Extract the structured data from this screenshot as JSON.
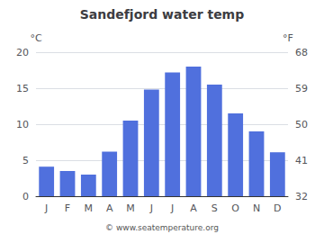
{
  "chart_data": {
    "type": "bar",
    "title": "Sandefjord water temp",
    "categories": [
      "J",
      "F",
      "M",
      "A",
      "M",
      "J",
      "J",
      "A",
      "S",
      "O",
      "N",
      "D"
    ],
    "values": [
      4.1,
      3.5,
      3.0,
      6.2,
      10.5,
      14.8,
      17.2,
      18.0,
      15.5,
      11.5,
      9.0,
      6.1
    ],
    "ylabel": "°C",
    "y2label": "°F",
    "ylim": [
      0,
      20
    ],
    "yticks": [
      0,
      5,
      10,
      15,
      20
    ],
    "y2lim": [
      32,
      68
    ],
    "y2ticks": [
      32,
      41,
      50,
      59,
      68
    ],
    "grid": true,
    "annotations": [
      "© www.seatemperature.org"
    ]
  }
}
